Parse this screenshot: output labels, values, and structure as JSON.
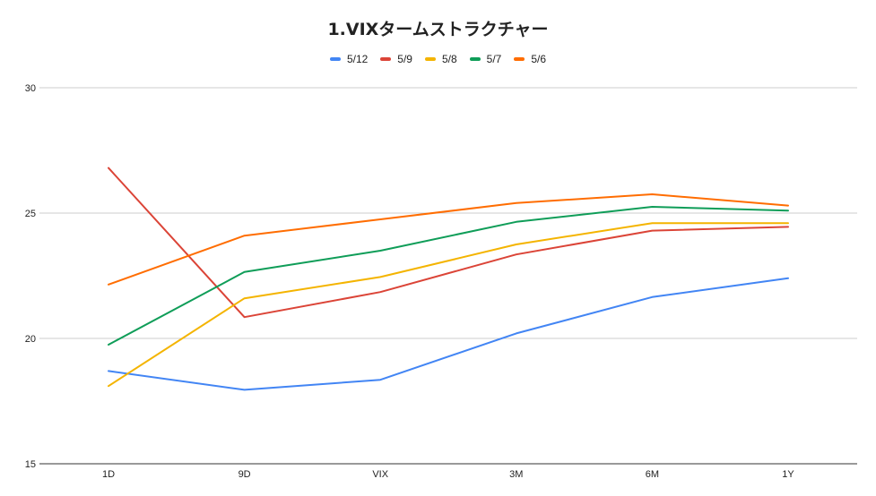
{
  "chart_data": {
    "type": "line",
    "title": "1.VIXタームストラクチャー",
    "xlabel": "",
    "ylabel": "",
    "categories": [
      "1D",
      "9D",
      "VIX",
      "3M",
      "6M",
      "1Y"
    ],
    "ylim": [
      15,
      30
    ],
    "yticks": [
      "15",
      "20",
      "25",
      "30"
    ],
    "grid": true,
    "legend_position": "top",
    "series": [
      {
        "name": "5/12",
        "color": "#4285f4",
        "values": [
          18.7,
          17.95,
          18.35,
          20.2,
          21.65,
          22.4
        ]
      },
      {
        "name": "5/9",
        "color": "#db4437",
        "values": [
          26.8,
          20.85,
          21.85,
          23.35,
          24.3,
          24.45
        ]
      },
      {
        "name": "5/8",
        "color": "#f4b400",
        "values": [
          18.1,
          21.6,
          22.45,
          23.75,
          24.6,
          24.6
        ]
      },
      {
        "name": "5/7",
        "color": "#0f9d58",
        "values": [
          19.75,
          22.65,
          23.5,
          24.65,
          25.25,
          25.1
        ]
      },
      {
        "name": "5/6",
        "color": "#ff6d01",
        "values": [
          22.15,
          24.1,
          24.75,
          25.4,
          25.75,
          25.3
        ]
      }
    ]
  }
}
